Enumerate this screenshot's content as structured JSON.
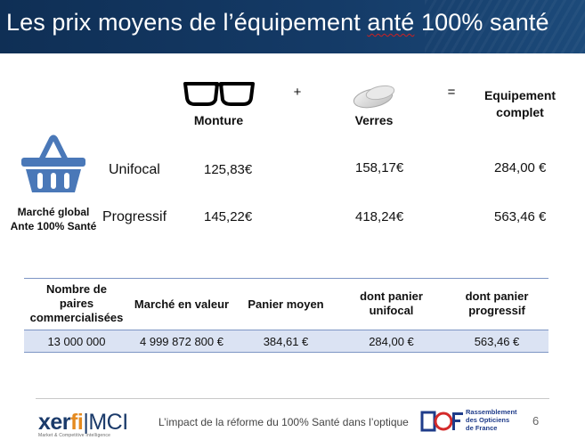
{
  "slide": {
    "title_before": "Les prix moyens de l’équipement ",
    "title_flag": "anté",
    "title_after": " 100% santé"
  },
  "header": {
    "monture": "Monture",
    "plus": "+",
    "verres": "Verres",
    "equals": "=",
    "equipement_line1": "Equipement",
    "equipement_line2": "complet"
  },
  "market": {
    "label_line1": "Marché global",
    "label_line2": "Ante 100% Santé"
  },
  "rows": [
    {
      "label": "Unifocal",
      "monture": "125,83€",
      "verres": "158,17€",
      "complet": "284,00 €"
    },
    {
      "label": "Progressif",
      "monture": "145,22€",
      "verres": "418,24€",
      "complet": "563,46 €"
    }
  ],
  "table": {
    "headers": [
      [
        "Nombre de",
        "paires",
        "commercialisées"
      ],
      [
        "Marché en valeur"
      ],
      [
        "Panier moyen"
      ],
      [
        "dont panier",
        "unifocal"
      ],
      [
        "dont panier",
        "progressif"
      ]
    ],
    "values": [
      "13 000 000",
      "4 999 872 800 €",
      "384,61 €",
      "284,00 €",
      "563,46 €"
    ]
  },
  "footer": {
    "brand_part1": "xer",
    "brand_part2": "fi",
    "brand_sep": "|",
    "brand_mci": "MCI",
    "brand_tagline": "Market & Competitive Intelligence",
    "caption": "L’impact de la réforme du 100% Santé dans l’optique",
    "rof_line1": "Rassemblement",
    "rof_line2": "des Opticiens",
    "rof_line3": "de France",
    "page_number": "6"
  },
  "icons": {
    "glasses": "glasses-icon",
    "lens": "lens-icon",
    "basket": "shopping-basket-icon",
    "rof": "rof-logo-icon"
  },
  "colors": {
    "title_bg": "#143a66",
    "basket": "#4a78b8",
    "table_row_bg": "#dbe3f3",
    "table_lines": "#7d95c4",
    "xerfi_orange": "#e58a1f"
  }
}
